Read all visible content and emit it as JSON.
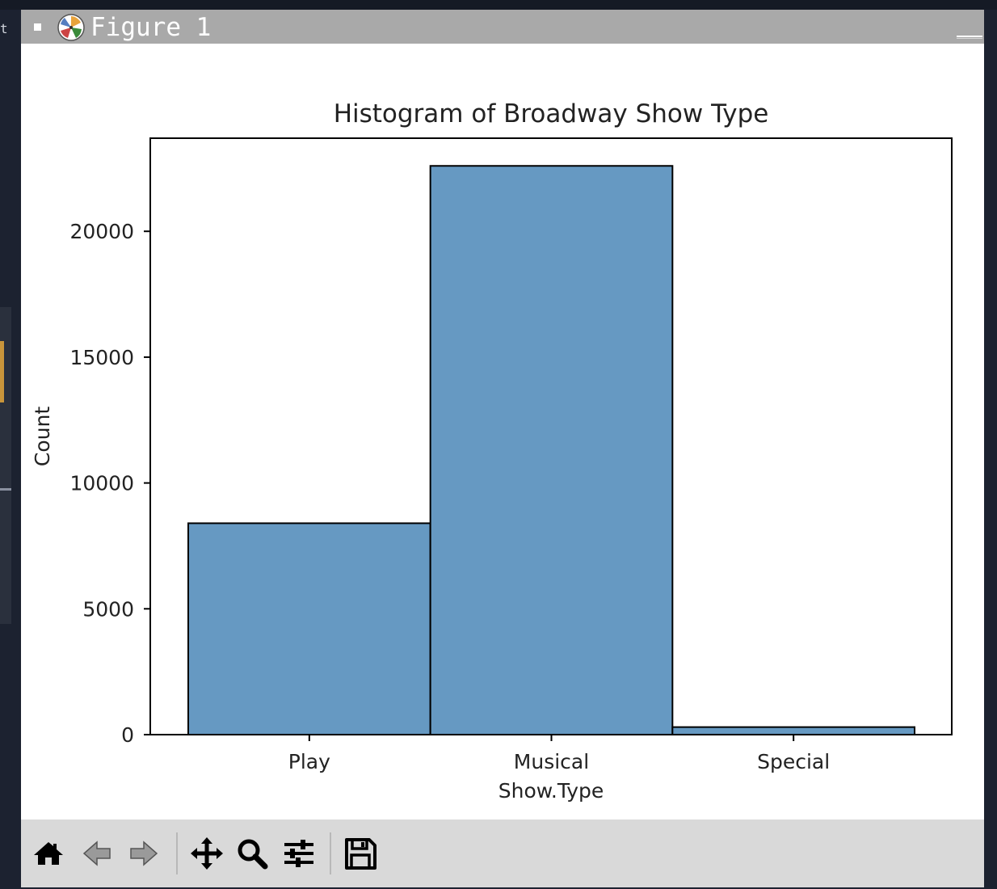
{
  "window": {
    "title": "Figure 1"
  },
  "toolbar": {
    "tools": [
      {
        "icon": "home-icon"
      },
      {
        "icon": "back-arrow-icon"
      },
      {
        "icon": "forward-arrow-icon"
      },
      {
        "icon": "pan-icon"
      },
      {
        "icon": "zoom-icon"
      },
      {
        "icon": "configure-subplots-icon"
      },
      {
        "icon": "save-icon"
      }
    ]
  },
  "colors": {
    "bar_fill": "#6699c2",
    "bar_edge": "#000000",
    "titlebar": "#a9a9a9",
    "toolbar": "#d9d9d9"
  },
  "chart_data": {
    "type": "bar",
    "title": "Histogram of Broadway Show Type",
    "xlabel": "Show.Type",
    "ylabel": "Count",
    "categories": [
      "Play",
      "Musical",
      "Special"
    ],
    "values": [
      8400,
      22600,
      300
    ],
    "yticks": [
      0,
      5000,
      10000,
      15000,
      20000
    ],
    "ylim": [
      0,
      23700
    ],
    "grid": false
  }
}
